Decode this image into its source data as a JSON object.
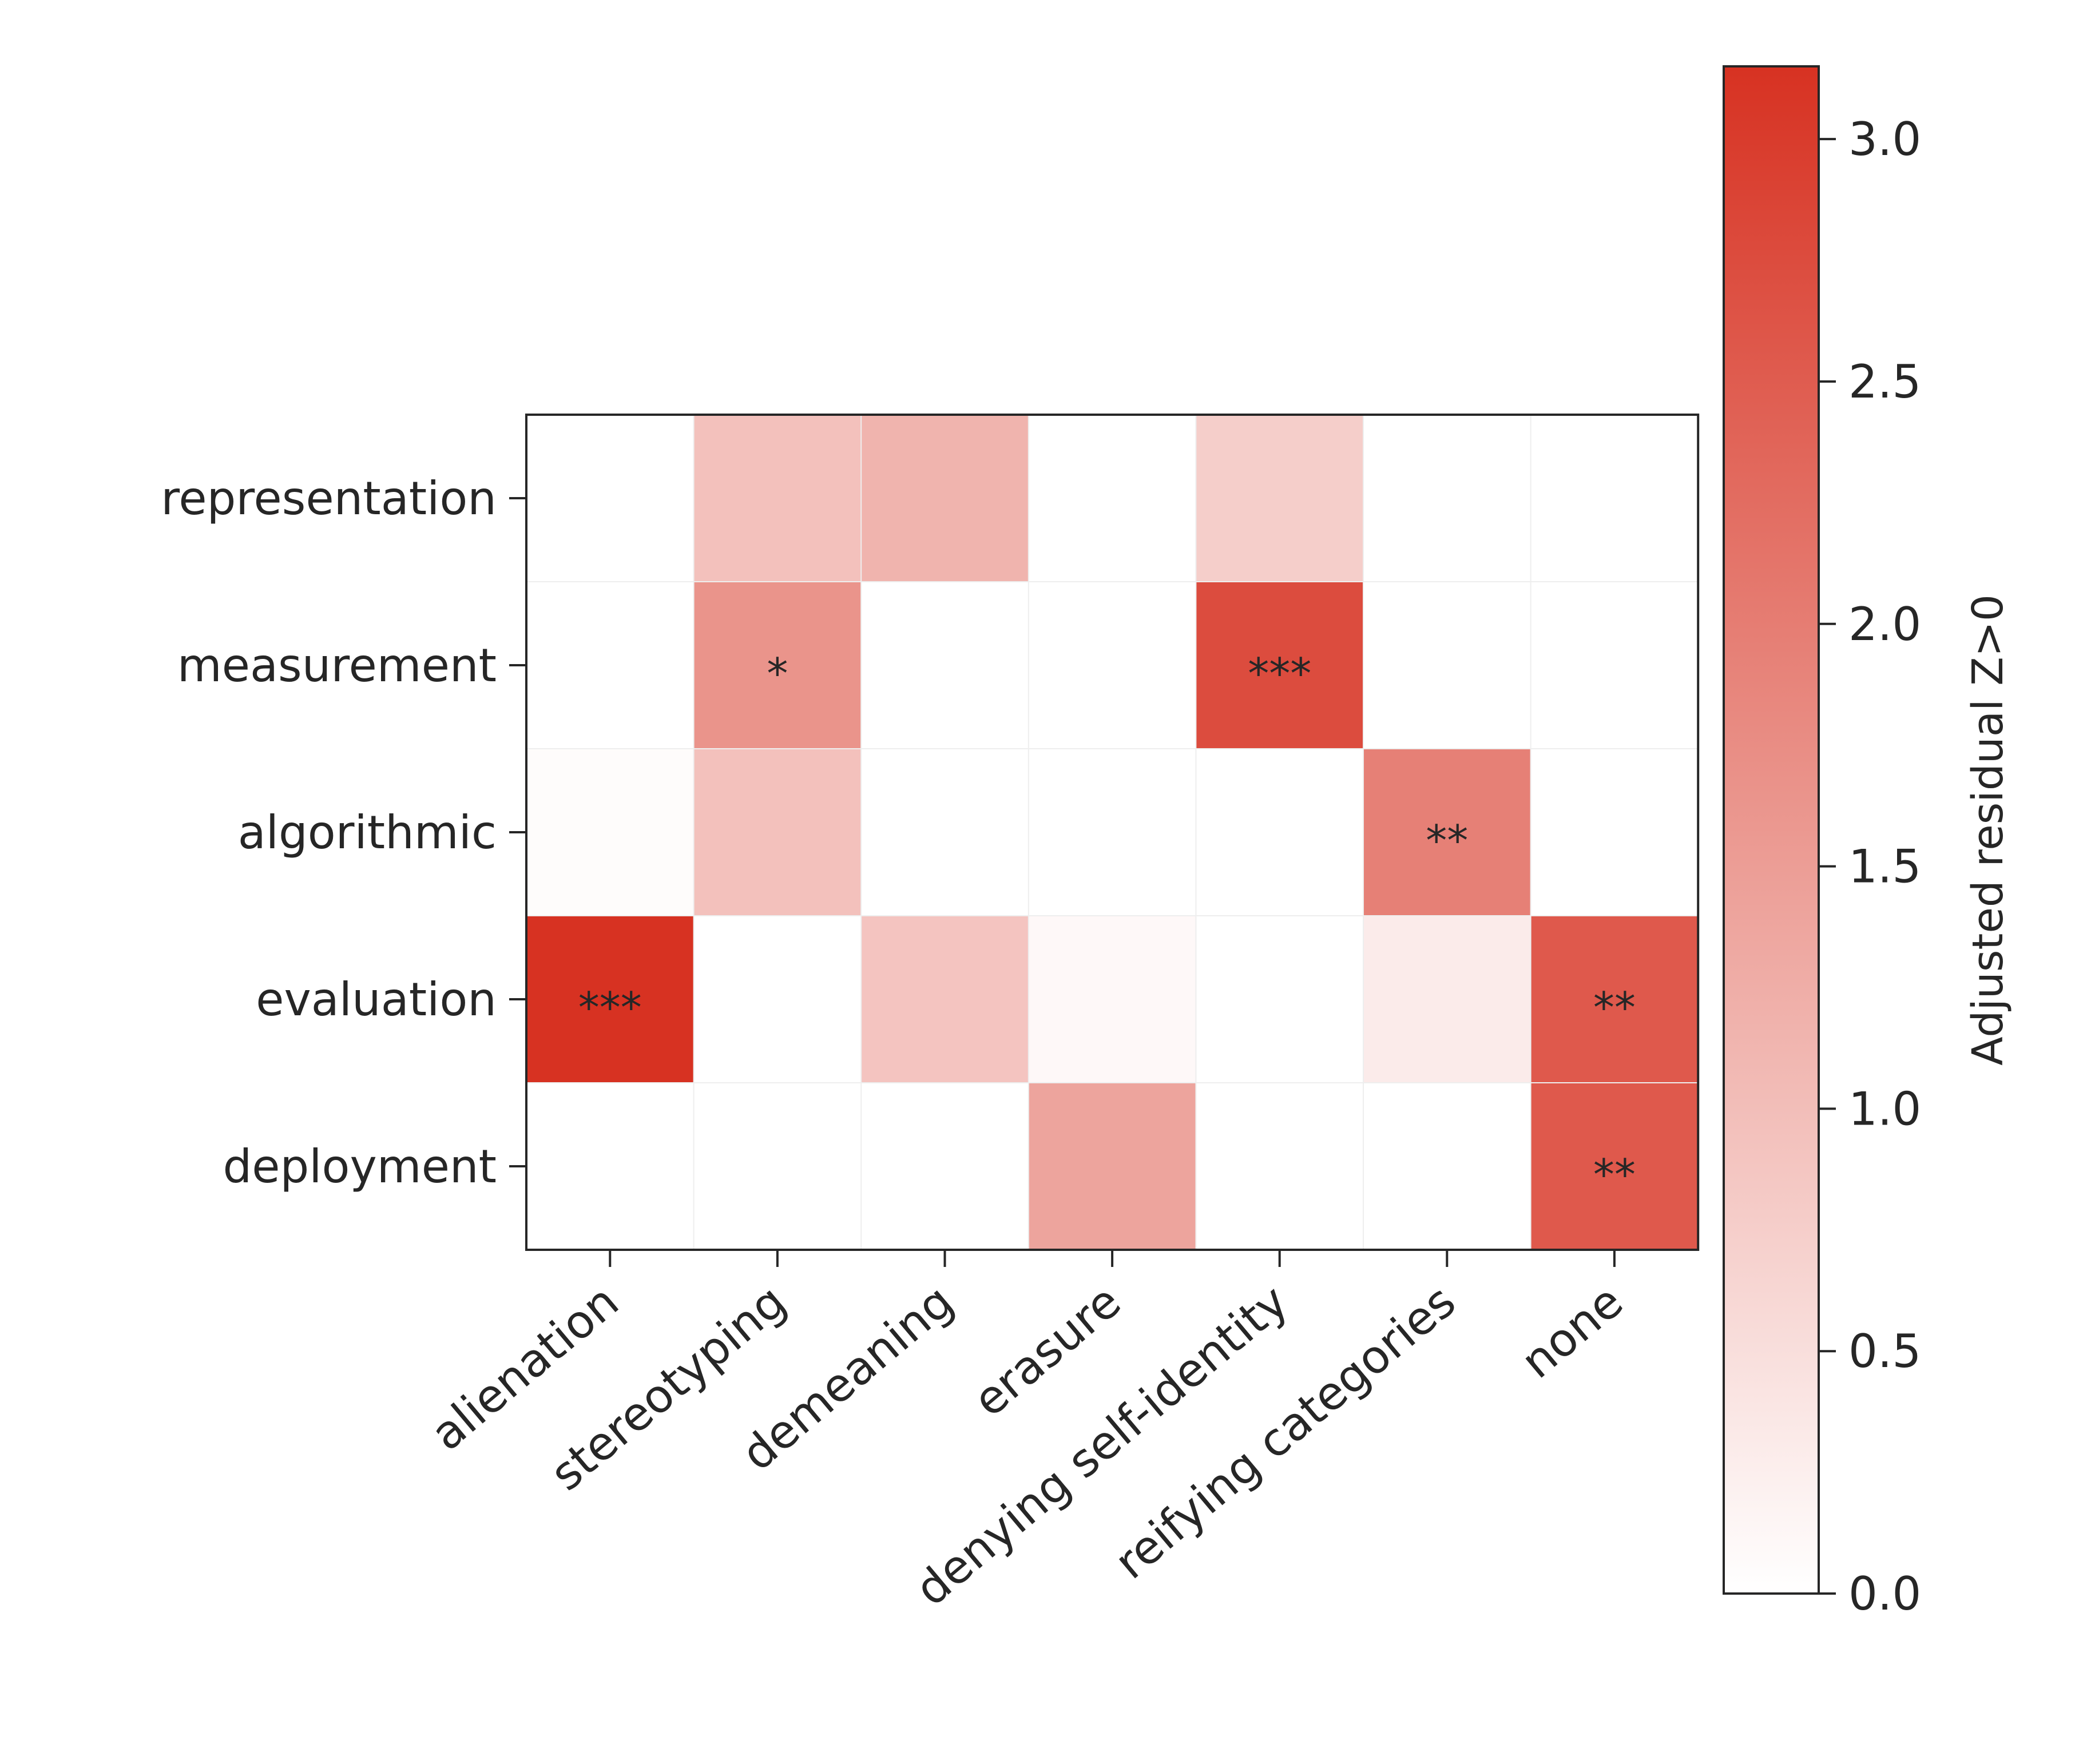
{
  "chart_data": {
    "type": "heatmap",
    "rows": [
      "representation",
      "measurement",
      "algorithmic",
      "evaluation",
      "deployment"
    ],
    "columns": [
      "alienation",
      "stereotyping",
      "demeaning",
      "erasure",
      "denying self-identity",
      "reifying categories",
      "none"
    ],
    "values": [
      [
        0.0,
        0.95,
        1.15,
        0.0,
        0.75,
        0.0,
        0.0
      ],
      [
        0.0,
        1.65,
        0.0,
        0.0,
        2.75,
        0.0,
        0.0
      ],
      [
        0.05,
        0.95,
        0.0,
        0.0,
        0.0,
        1.95,
        0.0
      ],
      [
        3.15,
        0.0,
        0.9,
        0.1,
        0.0,
        0.3,
        2.55
      ],
      [
        0.0,
        0.0,
        0.0,
        1.4,
        0.0,
        0.0,
        2.55
      ]
    ],
    "annotations": [
      [
        "",
        "",
        "",
        "",
        "",
        "",
        ""
      ],
      [
        "",
        "*",
        "",
        "",
        "***",
        "",
        ""
      ],
      [
        "",
        "",
        "",
        "",
        "",
        "**",
        ""
      ],
      [
        "***",
        "",
        "",
        "",
        "",
        "",
        "**"
      ],
      [
        "",
        "",
        "",
        "",
        "",
        "",
        "**"
      ]
    ],
    "colorbar": {
      "label": "Adjusted residual Z>0",
      "range": [
        0,
        3.15
      ],
      "ticks": [
        0.0,
        0.5,
        1.0,
        1.5,
        2.0,
        2.5,
        3.0
      ],
      "tick_labels": [
        "0.0",
        "0.5",
        "1.0",
        "1.5",
        "2.0",
        "2.5",
        "3.0"
      ],
      "color_low": "#ffffff",
      "color_high": "#d73222"
    }
  }
}
